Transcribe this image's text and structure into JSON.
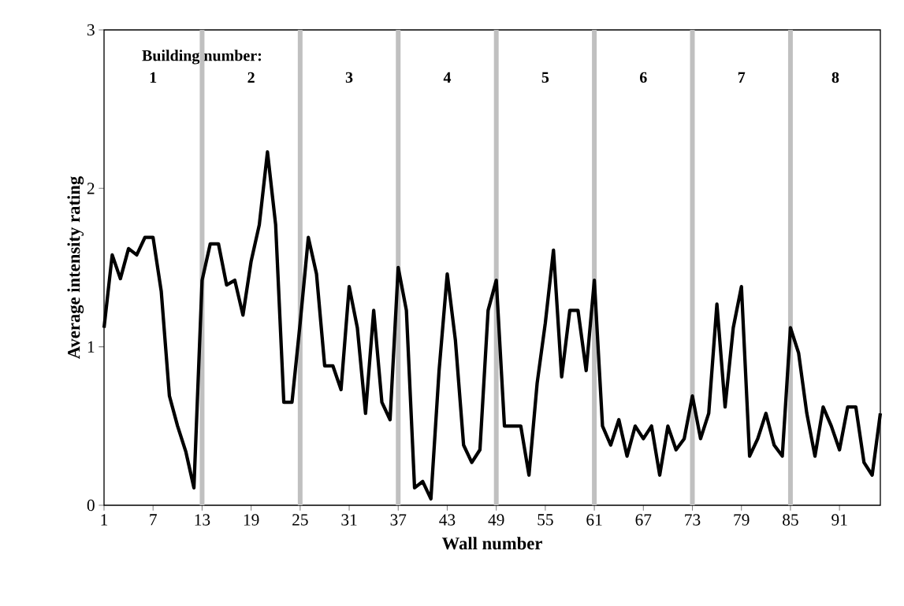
{
  "chart_data": {
    "type": "line",
    "xlabel": "Wall number",
    "ylabel": "Average intensity rating",
    "x": [
      1,
      2,
      3,
      4,
      5,
      6,
      7,
      8,
      9,
      10,
      11,
      12,
      13,
      14,
      15,
      16,
      17,
      18,
      19,
      20,
      21,
      22,
      23,
      24,
      25,
      26,
      27,
      28,
      29,
      30,
      31,
      32,
      33,
      34,
      35,
      36,
      37,
      38,
      39,
      40,
      41,
      42,
      43,
      44,
      45,
      46,
      47,
      48,
      49,
      50,
      51,
      52,
      53,
      54,
      55,
      56,
      57,
      58,
      59,
      60,
      61,
      62,
      63,
      64,
      65,
      66,
      67,
      68,
      69,
      70,
      71,
      72,
      73,
      74,
      75,
      76,
      77,
      78,
      79,
      80,
      81,
      82,
      83,
      84,
      85,
      86,
      87,
      88,
      89,
      90,
      91,
      92,
      93,
      94,
      95,
      96
    ],
    "series": [
      {
        "color": "#000000",
        "values": [
          1.12,
          1.58,
          1.43,
          1.62,
          1.58,
          1.69,
          1.69,
          1.35,
          0.69,
          0.5,
          0.34,
          0.11,
          1.42,
          1.65,
          1.65,
          1.39,
          1.42,
          1.2,
          1.54,
          1.77,
          2.23,
          1.77,
          0.65,
          0.65,
          1.15,
          1.69,
          1.46,
          0.88,
          0.88,
          0.73,
          1.38,
          1.12,
          0.58,
          1.23,
          0.65,
          0.54,
          1.5,
          1.23,
          0.11,
          0.15,
          0.04,
          0.85,
          1.46,
          1.04,
          0.38,
          0.27,
          0.35,
          1.23,
          1.42,
          0.5,
          0.5,
          0.5,
          0.19,
          0.77,
          1.15,
          1.61,
          0.81,
          1.23,
          1.23,
          0.85,
          1.42,
          0.5,
          0.38,
          0.54,
          0.31,
          0.5,
          0.42,
          0.5,
          0.19,
          0.5,
          0.35,
          0.42,
          0.69,
          0.42,
          0.58,
          1.27,
          0.62,
          1.12,
          1.38,
          0.31,
          0.42,
          0.58,
          0.38,
          0.31,
          1.12,
          0.96,
          0.58,
          0.31,
          0.62,
          0.5,
          0.35,
          0.62,
          0.62,
          0.27,
          0.19,
          0.58
        ]
      }
    ],
    "xlim": [
      1,
      96
    ],
    "xticks": [
      1,
      7,
      13,
      19,
      25,
      31,
      37,
      43,
      49,
      55,
      61,
      67,
      73,
      79,
      85,
      91
    ],
    "ylim": [
      0,
      3
    ],
    "yticks": [
      0,
      1,
      2,
      3
    ],
    "grid": false,
    "marker": "none",
    "line_style": "solid",
    "ref_lines": [
      {
        "axis": "x",
        "value": 13,
        "color": "#c0c0c0"
      },
      {
        "axis": "x",
        "value": 25,
        "color": "#c0c0c0"
      },
      {
        "axis": "x",
        "value": 37,
        "color": "#c0c0c0"
      },
      {
        "axis": "x",
        "value": 49,
        "color": "#c0c0c0"
      },
      {
        "axis": "x",
        "value": 61,
        "color": "#c0c0c0"
      },
      {
        "axis": "x",
        "value": 73,
        "color": "#c0c0c0"
      },
      {
        "axis": "x",
        "value": 85,
        "color": "#c0c0c0"
      }
    ],
    "annotations": [
      "Building number:",
      "1",
      "2",
      "3",
      "4",
      "5",
      "6",
      "7",
      "8"
    ]
  }
}
